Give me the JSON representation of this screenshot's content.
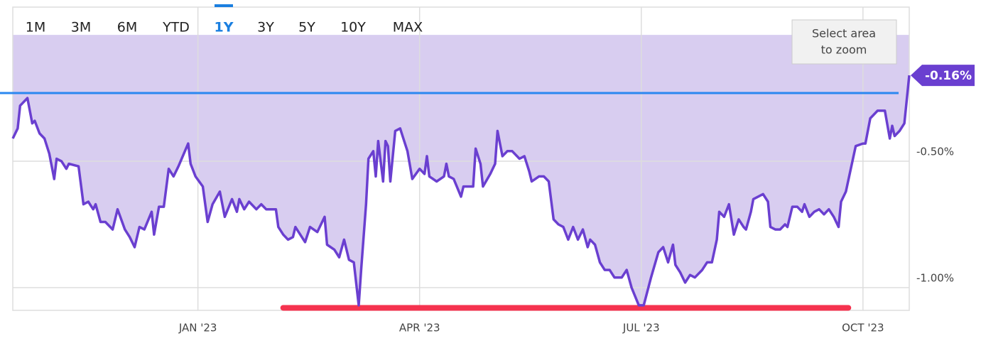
{
  "chart_data": {
    "type": "area",
    "range_buttons": [
      "1M",
      "3M",
      "6M",
      "YTD",
      "1Y",
      "3Y",
      "5Y",
      "10Y",
      "MAX"
    ],
    "selected_range": "1Y",
    "zoom_hint": [
      "Select area",
      "to zoom"
    ],
    "end_label": "-0.16%",
    "series": [
      {
        "color": "#6a3fd0",
        "fill": "#d8cdf0",
        "x": [
          0,
          2,
          3,
          6,
          8,
          9,
          11,
          13,
          15,
          17,
          18,
          20,
          22,
          23,
          27,
          29,
          31,
          33,
          34,
          36,
          38,
          40,
          41,
          43,
          46,
          48,
          50,
          52,
          54,
          57,
          58,
          60,
          62,
          64,
          66,
          68,
          72,
          73,
          75,
          78,
          80,
          82,
          85,
          87,
          90,
          92,
          93,
          95,
          97,
          100,
          102,
          104,
          108,
          109,
          111,
          113,
          115,
          116,
          118,
          120,
          122,
          125,
          128,
          129,
          132,
          134,
          136,
          138,
          140,
          142,
          143,
          145,
          146,
          148,
          149,
          150,
          152,
          153,
          154,
          155,
          157,
          159,
          160,
          162,
          164,
          167,
          169,
          170,
          171,
          174,
          177,
          178,
          179,
          181,
          184,
          185,
          189,
          190,
          192,
          193,
          196,
          198,
          199,
          201,
          203,
          205,
          208,
          210,
          212,
          213,
          216,
          218,
          220,
          222,
          224,
          226,
          228,
          230,
          232,
          234,
          236,
          237,
          239,
          241,
          243,
          245,
          247,
          250,
          252,
          254,
          257,
          259,
          262,
          265,
          267,
          269,
          271,
          272,
          274,
          276,
          278,
          280,
          283,
          285,
          287,
          289,
          290,
          292,
          294,
          296,
          298,
          300,
          301,
          303,
          304,
          308,
          310,
          311,
          313,
          315,
          317,
          318,
          320,
          322,
          324,
          325,
          327,
          329,
          331,
          333,
          334,
          335,
          337,
          339,
          340,
          342,
          344,
          346,
          349,
          350,
          352,
          355,
          358,
          360,
          361,
          362,
          364,
          366,
          368
        ],
        "values": [
          -0.41,
          -0.37,
          -0.28,
          -0.25,
          -0.35,
          -0.34,
          -0.39,
          -0.41,
          -0.47,
          -0.57,
          -0.49,
          -0.5,
          -0.53,
          -0.51,
          -0.52,
          -0.67,
          -0.66,
          -0.69,
          -0.67,
          -0.74,
          -0.74,
          -0.76,
          -0.77,
          -0.69,
          -0.77,
          -0.8,
          -0.84,
          -0.76,
          -0.77,
          -0.7,
          -0.79,
          -0.68,
          -0.68,
          -0.53,
          -0.56,
          -0.52,
          -0.43,
          -0.51,
          -0.56,
          -0.6,
          -0.74,
          -0.67,
          -0.62,
          -0.72,
          -0.65,
          -0.7,
          -0.65,
          -0.69,
          -0.66,
          -0.69,
          -0.67,
          -0.69,
          -0.69,
          -0.76,
          -0.79,
          -0.81,
          -0.8,
          -0.76,
          -0.79,
          -0.82,
          -0.76,
          -0.78,
          -0.72,
          -0.83,
          -0.85,
          -0.88,
          -0.81,
          -0.89,
          -0.9,
          -1.07,
          -0.93,
          -0.67,
          -0.49,
          -0.46,
          -0.56,
          -0.42,
          -0.58,
          -0.42,
          -0.44,
          -0.58,
          -0.38,
          -0.37,
          -0.4,
          -0.46,
          -0.57,
          -0.53,
          -0.55,
          -0.48,
          -0.56,
          -0.58,
          -0.56,
          -0.51,
          -0.56,
          -0.57,
          -0.64,
          -0.6,
          -0.6,
          -0.45,
          -0.51,
          -0.6,
          -0.55,
          -0.51,
          -0.38,
          -0.48,
          -0.46,
          -0.46,
          -0.49,
          -0.48,
          -0.54,
          -0.58,
          -0.56,
          -0.56,
          -0.58,
          -0.73,
          -0.75,
          -0.76,
          -0.81,
          -0.76,
          -0.81,
          -0.77,
          -0.84,
          -0.81,
          -0.83,
          -0.9,
          -0.93,
          -0.93,
          -0.96,
          -0.96,
          -0.93,
          -1.0,
          -1.07,
          -1.07,
          -0.96,
          -0.86,
          -0.84,
          -0.9,
          -0.83,
          -0.91,
          -0.94,
          -0.98,
          -0.95,
          -0.96,
          -0.93,
          -0.9,
          -0.9,
          -0.81,
          -0.7,
          -0.72,
          -0.67,
          -0.79,
          -0.73,
          -0.76,
          -0.77,
          -0.7,
          -0.65,
          -0.63,
          -0.66,
          -0.76,
          -0.77,
          -0.77,
          -0.75,
          -0.76,
          -0.68,
          -0.68,
          -0.7,
          -0.67,
          -0.72,
          -0.7,
          -0.69,
          -0.71,
          -0.7,
          -0.69,
          -0.72,
          -0.76,
          -0.66,
          -0.62,
          -0.53,
          -0.44,
          -0.43,
          -0.43,
          -0.33,
          -0.3,
          -0.3,
          -0.41,
          -0.36,
          -0.4,
          -0.38,
          -0.35,
          -0.16
        ]
      }
    ],
    "reference_lines": [
      {
        "value": -0.23,
        "color": "#2b88f0"
      }
    ],
    "highlight": {
      "x": [
        111,
        343
      ],
      "value": -1.08,
      "color": "#f5334f"
    },
    "xlim": [
      0,
      368
    ],
    "xticks": [
      {
        "value": 76,
        "label": "JAN '23"
      },
      {
        "value": 167,
        "label": "APR '23"
      },
      {
        "value": 258,
        "label": "JUL '23"
      },
      {
        "value": 349,
        "label": "OCT '23"
      }
    ],
    "ylim": [
      -1.09,
      0.11
    ],
    "yticks": [
      {
        "value": -0.5,
        "label": "-0.50%"
      },
      {
        "value": -1.0,
        "label": "-1.00%"
      }
    ],
    "grid": true
  }
}
